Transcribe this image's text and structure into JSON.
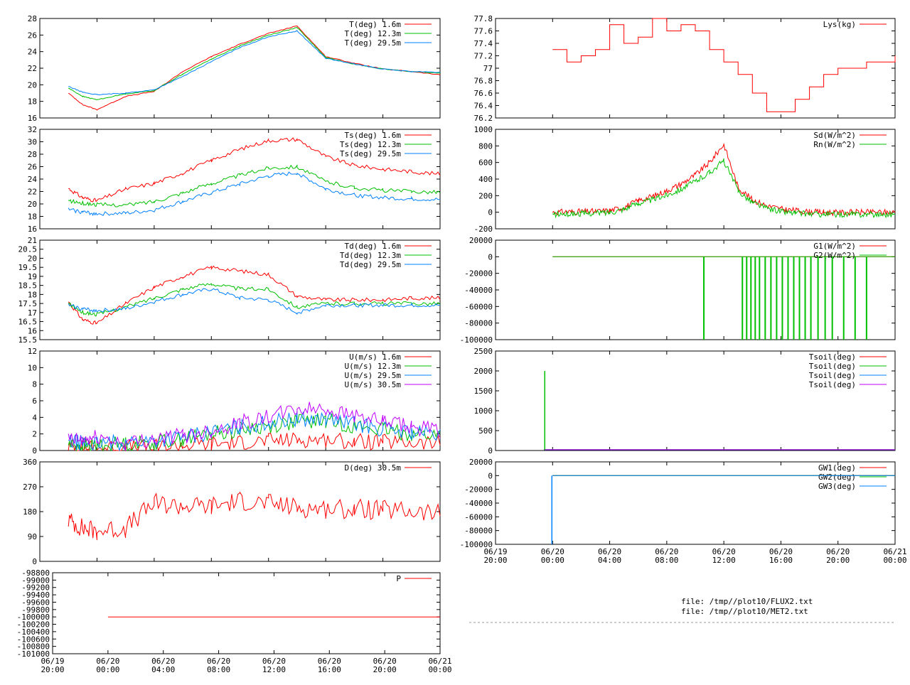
{
  "colors": {
    "c1": "#ff0000",
    "c2": "#00c000",
    "c3": "#0080ff",
    "c4": "#c000ff"
  },
  "footer": {
    "line1": "file: /tmp//plot10/FLUX2.txt",
    "line2": "file: /tmp//plot10/MET2.txt"
  },
  "chart_data": [
    {
      "id": "T",
      "type": "line",
      "ylim": [
        16,
        28
      ],
      "yticks": [
        "16",
        "18",
        "20",
        "22",
        "24",
        "26",
        "28"
      ],
      "ytick_values": [
        16,
        18,
        20,
        22,
        24,
        26,
        28
      ],
      "series": [
        {
          "name": "T(deg)  1.6m",
          "color": "#ff0000"
        },
        {
          "name": "T(deg) 12.3m",
          "color": "#00c000"
        },
        {
          "name": "T(deg) 29.5m",
          "color": "#0080ff"
        }
      ],
      "x": [
        0,
        1,
        2,
        3,
        4,
        6,
        8,
        10,
        12,
        14,
        16,
        18,
        20,
        22,
        24,
        26,
        28
      ],
      "values": [
        [
          null,
          null,
          19,
          17.6,
          17,
          18.6,
          19.2,
          21.6,
          23.4,
          24.9,
          26.2,
          27.1,
          23.4,
          22.6,
          21.9,
          21.6,
          21.2
        ],
        [
          null,
          null,
          19.6,
          18.6,
          18.2,
          18.9,
          19.3,
          21.3,
          23.1,
          24.7,
          26.0,
          26.9,
          23.3,
          22.5,
          21.9,
          21.6,
          21.4
        ],
        [
          null,
          null,
          19.8,
          19.1,
          18.8,
          19.0,
          19.4,
          21.0,
          22.8,
          24.5,
          25.8,
          26.5,
          23.2,
          22.5,
          21.9,
          21.6,
          21.5
        ]
      ]
    },
    {
      "id": "Ts",
      "type": "line",
      "ylim": [
        16,
        32
      ],
      "yticks": [
        "16",
        "18",
        "20",
        "22",
        "24",
        "26",
        "28",
        "30",
        "32"
      ],
      "ytick_values": [
        16,
        18,
        20,
        22,
        24,
        26,
        28,
        30,
        32
      ],
      "series": [
        {
          "name": "Ts(deg)  1.6m",
          "color": "#ff0000"
        },
        {
          "name": "Ts(deg) 12.3m",
          "color": "#00c000"
        },
        {
          "name": "Ts(deg) 29.5m",
          "color": "#0080ff"
        }
      ],
      "x": [
        0,
        1,
        2,
        3,
        4,
        6,
        8,
        10,
        12,
        14,
        16,
        18,
        20,
        22,
        24,
        26,
        28
      ],
      "values": [
        [
          null,
          null,
          22.5,
          21,
          20.5,
          22.4,
          23.3,
          25,
          27,
          28.8,
          30.2,
          30.4,
          27.6,
          26.2,
          25.6,
          25.2,
          24.8
        ],
        [
          null,
          null,
          20.5,
          20.1,
          19.9,
          19.8,
          20.4,
          21.8,
          23.3,
          24.6,
          25.8,
          26,
          23.6,
          22.6,
          22.2,
          22,
          21.9
        ],
        [
          null,
          null,
          19.1,
          18.7,
          18.4,
          18.5,
          19,
          20.4,
          21.8,
          23.2,
          24.5,
          25,
          22.4,
          21.4,
          21,
          20.8,
          20.7
        ]
      ]
    },
    {
      "id": "Td",
      "type": "line",
      "ylim": [
        15.5,
        21
      ],
      "yticks": [
        "15.5",
        "16",
        "16.5",
        "17",
        "17.5",
        "18",
        "18.5",
        "19",
        "19.5",
        "20",
        "20.5",
        "21"
      ],
      "ytick_values": [
        15.5,
        16,
        16.5,
        17,
        17.5,
        18,
        18.5,
        19,
        19.5,
        20,
        20.5,
        21
      ],
      "series": [
        {
          "name": "Td(deg)  1.6m",
          "color": "#ff0000"
        },
        {
          "name": "Td(deg) 12.3m",
          "color": "#00c000"
        },
        {
          "name": "Td(deg) 29.5m",
          "color": "#0080ff"
        }
      ],
      "x": [
        0,
        1,
        2,
        3,
        4,
        6,
        8,
        10,
        12,
        14,
        16,
        18,
        20,
        22,
        24,
        26,
        28
      ],
      "values": [
        [
          null,
          null,
          17.6,
          16.6,
          16.4,
          17.5,
          18.4,
          19,
          19.5,
          19.3,
          19.1,
          17.9,
          17.7,
          17.7,
          17.7,
          17.8,
          17.8
        ],
        [
          null,
          null,
          17.5,
          17,
          16.9,
          17.3,
          17.8,
          18.3,
          18.6,
          18.3,
          18.3,
          17.3,
          17.5,
          17.5,
          17.5,
          17.5,
          17.5
        ],
        [
          null,
          null,
          17.4,
          17.2,
          17.1,
          17.2,
          17.6,
          18,
          18.3,
          17.8,
          17.7,
          17,
          17.4,
          17.4,
          17.4,
          17.4,
          17.4
        ]
      ]
    },
    {
      "id": "U",
      "type": "line",
      "ylim": [
        0,
        12
      ],
      "yticks": [
        "0",
        "2",
        "4",
        "6",
        "8",
        "10",
        "12"
      ],
      "ytick_values": [
        0,
        2,
        4,
        6,
        8,
        10,
        12
      ],
      "series": [
        {
          "name": "U(m/s)  1.6m",
          "color": "#ff0000"
        },
        {
          "name": "U(m/s) 12.3m",
          "color": "#00c000"
        },
        {
          "name": "U(m/s) 29.5m",
          "color": "#0080ff"
        },
        {
          "name": "U(m/s) 30.5m",
          "color": "#c000ff"
        }
      ],
      "x": [
        0,
        1,
        2,
        3,
        4,
        6,
        8,
        10,
        12,
        14,
        16,
        18,
        20,
        22,
        24,
        26,
        28
      ],
      "values": [
        [
          null,
          null,
          0.5,
          0.3,
          0.3,
          0.4,
          0.4,
          0.6,
          0.8,
          1,
          1.2,
          1.3,
          1.3,
          1.1,
          1,
          0.9,
          0.8
        ],
        [
          null,
          null,
          0.8,
          0.6,
          0.6,
          0.8,
          1,
          1.4,
          2,
          2.5,
          3,
          3.5,
          3.6,
          3,
          2.5,
          2,
          1.8
        ],
        [
          null,
          null,
          1,
          0.9,
          0.8,
          1,
          1.2,
          1.6,
          2.2,
          2.8,
          3.4,
          3.8,
          3.8,
          3.2,
          2.6,
          2.2,
          1.9
        ],
        [
          null,
          null,
          1.3,
          1.2,
          1.6,
          0.9,
          1.4,
          1.8,
          2.4,
          3.4,
          4,
          5,
          5,
          4.2,
          3.4,
          2.8,
          2.4
        ]
      ]
    },
    {
      "id": "D",
      "type": "line",
      "ylim": [
        0,
        360
      ],
      "yticks": [
        "0",
        "90",
        "180",
        "270",
        "360"
      ],
      "ytick_values": [
        0,
        90,
        180,
        270,
        360
      ],
      "series": [
        {
          "name": "D(deg)  30.5m",
          "color": "#ff0000"
        }
      ],
      "x": [
        0,
        1,
        2,
        3,
        4,
        6,
        8,
        10,
        12,
        14,
        16,
        18,
        20,
        22,
        24,
        26,
        28
      ],
      "values": [
        [
          null,
          null,
          150,
          120,
          110,
          120,
          210,
          200,
          200,
          220,
          210,
          195,
          190,
          190,
          185,
          180,
          170
        ]
      ]
    },
    {
      "id": "P",
      "type": "line",
      "ylim": [
        -101000,
        -98800
      ],
      "yticks": [
        "-101000",
        "-100800",
        "-100600",
        "-100400",
        "-100200",
        "-100000",
        "-99800",
        "-99600",
        "-99400",
        "-99200",
        "-99000",
        "-98800"
      ],
      "ytick_values": [
        -101000,
        -100800,
        -100600,
        -100400,
        -100200,
        -100000,
        -99800,
        -99600,
        -99400,
        -99200,
        -99000,
        -98800
      ],
      "series": [
        {
          "name": "P",
          "color": "#ff0000"
        }
      ],
      "x": [
        4,
        28
      ],
      "values": [
        [
          -100000,
          -100000
        ]
      ]
    },
    {
      "id": "Lys",
      "type": "line",
      "ylim": [
        76.2,
        77.8
      ],
      "yticks": [
        "76.2",
        "76.4",
        "76.6",
        "76.8",
        "77",
        "77.2",
        "77.4",
        "77.6",
        "77.8"
      ],
      "ytick_values": [
        76.2,
        76.4,
        76.6,
        76.8,
        77,
        77.2,
        77.4,
        77.6,
        77.8
      ],
      "series": [
        {
          "name": "Lys(kg)",
          "color": "#ff0000"
        }
      ],
      "x": [
        4,
        5,
        6,
        7,
        8,
        9,
        10,
        11,
        12,
        13,
        14,
        15,
        16,
        17,
        18,
        19,
        20,
        21,
        22,
        23,
        24,
        25,
        26,
        27,
        28
      ],
      "values": [
        [
          77.3,
          77.1,
          77.2,
          77.3,
          77.7,
          77.4,
          77.5,
          77.8,
          77.6,
          77.7,
          77.6,
          77.3,
          77.1,
          76.9,
          76.6,
          76.3,
          76.3,
          76.5,
          76.7,
          76.9,
          77,
          77,
          77.1,
          77.1,
          77.2
        ]
      ]
    },
    {
      "id": "Sd",
      "type": "line",
      "ylim": [
        -200,
        1000
      ],
      "yticks": [
        "-200",
        "0",
        "200",
        "400",
        "600",
        "800",
        "1000"
      ],
      "ytick_values": [
        -200,
        0,
        200,
        400,
        600,
        800,
        1000
      ],
      "series": [
        {
          "name": "Sd(W/m^2)",
          "color": "#ff0000"
        },
        {
          "name": "Rn(W/m^2)",
          "color": "#00c000"
        }
      ],
      "x": [
        4,
        5,
        6,
        7,
        8,
        9,
        10,
        11,
        12,
        13,
        14,
        15,
        16,
        17,
        18,
        19,
        20,
        21,
        22,
        23,
        24,
        25,
        26,
        27,
        28
      ],
      "values": [
        [
          0,
          5,
          8,
          10,
          20,
          60,
          140,
          190,
          260,
          340,
          450,
          600,
          820,
          300,
          150,
          80,
          40,
          20,
          5,
          0,
          -5,
          0,
          0,
          0,
          0
        ],
        [
          -30,
          -20,
          -15,
          -10,
          0,
          40,
          110,
          150,
          210,
          280,
          370,
          480,
          620,
          260,
          120,
          50,
          10,
          -10,
          -20,
          -25,
          -25,
          -25,
          -25,
          -25,
          -25
        ]
      ]
    },
    {
      "id": "G",
      "type": "line",
      "ylim": [
        -100000,
        20000
      ],
      "yticks": [
        "-100000",
        "-80000",
        "-60000",
        "-40000",
        "-20000",
        "0",
        "20000"
      ],
      "ytick_values": [
        -100000,
        -80000,
        -60000,
        -40000,
        -20000,
        0,
        20000
      ],
      "series": [
        {
          "name": "G1(W/m^2)",
          "color": "#ff0000"
        },
        {
          "name": "G2(W/m^2)",
          "color": "#00c000"
        }
      ],
      "x": [
        4,
        28
      ],
      "values": [
        [
          0,
          0
        ],
        [
          0,
          0
        ]
      ],
      "dropouts": {
        "series": "G2(W/m^2)",
        "value": -99999,
        "approx_times": [
          14.6,
          17.3,
          17.6,
          17.9,
          18.2,
          18.5,
          18.9,
          19.3,
          19.7,
          20.1,
          20.5,
          20.9,
          21.3,
          21.7,
          22.1,
          22.6,
          23.1,
          23.6,
          24.4,
          25.2,
          26
        ]
      }
    },
    {
      "id": "Tsoil",
      "type": "line",
      "ylim": [
        0,
        2500
      ],
      "yticks": [
        "0",
        "500",
        "1000",
        "1500",
        "2000",
        "2500"
      ],
      "ytick_values": [
        0,
        500,
        1000,
        1500,
        2000,
        2500
      ],
      "series": [
        {
          "name": "Tsoil(deg)",
          "color": "#ff0000"
        },
        {
          "name": "Tsoil(deg)",
          "color": "#00c000"
        },
        {
          "name": "Tsoil(deg)",
          "color": "#0080ff"
        },
        {
          "name": "Tsoil(deg)",
          "color": "#c000ff"
        }
      ],
      "x": [
        3.4,
        28
      ],
      "values": [
        [
          20,
          20
        ],
        [
          20,
          20
        ],
        [
          20,
          20
        ],
        [
          20,
          20
        ]
      ],
      "spike": {
        "series": 1,
        "x": 3.45,
        "value": 2000
      }
    },
    {
      "id": "GW",
      "type": "line",
      "ylim": [
        -100000,
        20000
      ],
      "yticks": [
        "-100000",
        "-80000",
        "-60000",
        "-40000",
        "-20000",
        "0",
        "20000"
      ],
      "ytick_values": [
        -100000,
        -80000,
        -60000,
        -40000,
        -20000,
        0,
        20000
      ],
      "series": [
        {
          "name": "GW1(deg)",
          "color": "#ff0000"
        },
        {
          "name": "GW2(deg)",
          "color": "#00c000"
        },
        {
          "name": "GW3(deg)",
          "color": "#0080ff"
        }
      ],
      "x": [
        4,
        28
      ],
      "values": [
        [
          0,
          0
        ],
        [
          0,
          0
        ],
        [
          0,
          0
        ]
      ],
      "drop": {
        "series": 2,
        "x": 3.95,
        "value": -100000
      }
    },
    {
      "id": "xaxis",
      "type": "axis",
      "xticks": [
        {
          "t": 0,
          "label1": "06/19",
          "label2": "20:00"
        },
        {
          "t": 4,
          "label1": "06/20",
          "label2": "00:00"
        },
        {
          "t": 8,
          "label1": "06/20",
          "label2": "04:00"
        },
        {
          "t": 12,
          "label1": "06/20",
          "label2": "08:00"
        },
        {
          "t": 16,
          "label1": "06/20",
          "label2": "12:00"
        },
        {
          "t": 20,
          "label1": "06/20",
          "label2": "16:00"
        },
        {
          "t": 24,
          "label1": "06/20",
          "label2": "20:00"
        },
        {
          "t": 28,
          "label1": "06/21",
          "label2": "00:00"
        }
      ],
      "xlim": [
        0,
        28
      ]
    }
  ]
}
